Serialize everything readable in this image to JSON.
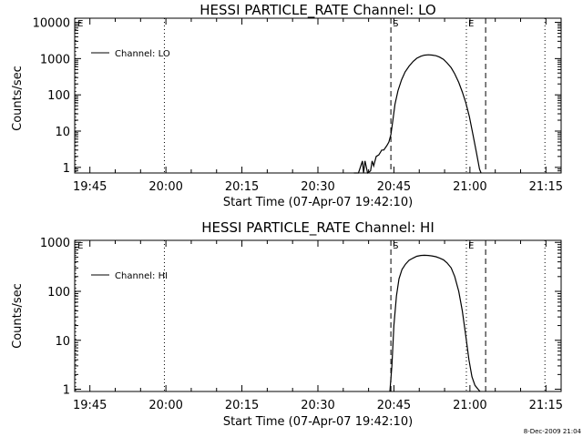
{
  "footer": "8-Dec-2009 21:04",
  "colors": {
    "background": "#ffffff",
    "foreground": "#000000"
  },
  "chart_data": [
    {
      "type": "line",
      "title": "HESSI PARTICLE_RATE Channel: LO",
      "xlabel": "Start Time (07-Apr-07 19:42:10)",
      "ylabel": "Counts/sec",
      "x_unit": "minutes after 19:42:10 (07-Apr-07)",
      "xlim": [
        0,
        96
      ],
      "x_ticks": [
        {
          "value": 3,
          "label": "19:45"
        },
        {
          "value": 18,
          "label": "20:00"
        },
        {
          "value": 33,
          "label": "20:15"
        },
        {
          "value": 48,
          "label": "20:30"
        },
        {
          "value": 63,
          "label": "20:45"
        },
        {
          "value": 78,
          "label": "21:00"
        },
        {
          "value": 93,
          "label": "21:15"
        }
      ],
      "y_scale": "log",
      "ylim": [
        0.7,
        13000
      ],
      "y_ticks": [
        {
          "value": 1,
          "label": "1"
        },
        {
          "value": 10,
          "label": "10"
        },
        {
          "value": 100,
          "label": "100"
        },
        {
          "value": 1000,
          "label": "1000"
        },
        {
          "value": 10000,
          "label": "10000"
        }
      ],
      "legend": {
        "label": "Channel: LO",
        "position": "top-left"
      },
      "event_markers": [
        {
          "x": 0.2,
          "style": "dotted",
          "label": "E"
        },
        {
          "x": 17.7,
          "style": "dotted",
          "label": ""
        },
        {
          "x": 62.4,
          "style": "dashed",
          "label": "S"
        },
        {
          "x": 77.3,
          "style": "dotted",
          "label": "E"
        },
        {
          "x": 81.1,
          "style": "dashed",
          "label": ""
        },
        {
          "x": 92.8,
          "style": "dotted",
          "label": ""
        }
      ],
      "series": [
        {
          "name": "Channel: LO",
          "x": [
            55.1,
            55.5,
            56.0,
            56.8,
            57.0,
            57.3,
            57.8,
            58.4,
            58.7,
            59.0,
            59.5,
            60.0,
            60.6,
            61.0,
            61.6,
            62.0,
            62.4,
            62.8,
            63.2,
            63.8,
            64.5,
            65.2,
            66.0,
            66.8,
            67.5,
            68.3,
            69.0,
            69.8,
            70.5,
            71.3,
            72.0,
            72.8,
            73.5,
            74.3,
            75.0,
            75.8,
            76.5,
            77.2,
            77.9,
            78.6,
            79.3,
            79.9,
            80.2
          ],
          "y": [
            0.7,
            0.7,
            0.7,
            1.5,
            0.7,
            1.5,
            0.7,
            0.8,
            1.5,
            1.1,
            2.0,
            2.2,
            3.0,
            3.0,
            4.0,
            5.0,
            8.0,
            20,
            55,
            130,
            260,
            430,
            620,
            840,
            1020,
            1160,
            1240,
            1270,
            1250,
            1200,
            1100,
            950,
            760,
            560,
            380,
            220,
            120,
            60,
            25,
            8,
            2.5,
            0.9,
            0.7
          ]
        }
      ]
    },
    {
      "type": "line",
      "title": "HESSI PARTICLE_RATE Channel: HI",
      "xlabel": "Start Time (07-Apr-07 19:42:10)",
      "ylabel": "Counts/sec",
      "x_unit": "minutes after 19:42:10 (07-Apr-07)",
      "xlim": [
        0,
        96
      ],
      "x_ticks": [
        {
          "value": 3,
          "label": "19:45"
        },
        {
          "value": 18,
          "label": "20:00"
        },
        {
          "value": 33,
          "label": "20:15"
        },
        {
          "value": 48,
          "label": "20:30"
        },
        {
          "value": 63,
          "label": "20:45"
        },
        {
          "value": 78,
          "label": "21:00"
        },
        {
          "value": 93,
          "label": "21:15"
        }
      ],
      "y_scale": "log",
      "ylim": [
        0.9,
        1100
      ],
      "y_ticks": [
        {
          "value": 1,
          "label": "1"
        },
        {
          "value": 10,
          "label": "10"
        },
        {
          "value": 100,
          "label": "100"
        },
        {
          "value": 1000,
          "label": "1000"
        }
      ],
      "legend": {
        "label": "Channel: HI",
        "position": "top-left"
      },
      "event_markers": [
        {
          "x": 0.2,
          "style": "dotted",
          "label": "E"
        },
        {
          "x": 17.7,
          "style": "dotted",
          "label": ""
        },
        {
          "x": 62.4,
          "style": "dashed",
          "label": "S"
        },
        {
          "x": 77.3,
          "style": "dotted",
          "label": "E"
        },
        {
          "x": 81.1,
          "style": "dashed",
          "label": ""
        },
        {
          "x": 92.8,
          "style": "dotted",
          "label": ""
        }
      ],
      "series": [
        {
          "name": "Channel: HI",
          "x": [
            62.2,
            62.6,
            63.0,
            63.5,
            64.0,
            64.6,
            65.3,
            66.0,
            66.8,
            67.5,
            68.3,
            69.0,
            69.8,
            70.5,
            71.3,
            72.0,
            72.8,
            73.5,
            74.3,
            75.0,
            75.8,
            76.5,
            77.2,
            77.8,
            78.4,
            79.0,
            79.6,
            80.0
          ],
          "y": [
            0.9,
            3,
            20,
            80,
            180,
            280,
            360,
            430,
            480,
            520,
            540,
            545,
            540,
            530,
            510,
            480,
            440,
            380,
            300,
            200,
            100,
            40,
            12,
            4,
            1.8,
            1.2,
            1.0,
            0.9
          ]
        }
      ]
    }
  ]
}
